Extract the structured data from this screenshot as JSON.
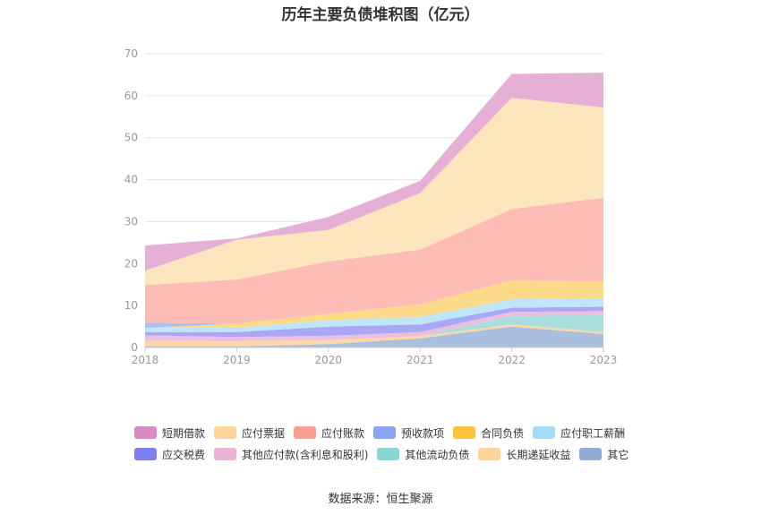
{
  "title": "历年主要负债堆积图（亿元）",
  "source": "数据来源：恒生聚源",
  "chart_data": {
    "type": "area",
    "stacked": true,
    "categories": [
      "2018",
      "2019",
      "2020",
      "2021",
      "2022",
      "2023"
    ],
    "ylim": [
      0,
      70
    ],
    "yticks": [
      0,
      10,
      20,
      30,
      40,
      50,
      60,
      70
    ],
    "grid": true,
    "legend_position": "bottom",
    "series": [
      {
        "name": "其它",
        "color": "#aabfe0",
        "values": [
          0.3,
          0.3,
          0.8,
          2.2,
          5.0,
          3.2
        ]
      },
      {
        "name": "长期递延收益",
        "color": "#fdd8a6",
        "values": [
          1.3,
          1.2,
          1.0,
          0.5,
          0.5,
          0.5
        ]
      },
      {
        "name": "其他流动负债",
        "color": "#a8dedb",
        "values": [
          0,
          0,
          0,
          0,
          2.0,
          4.0
        ]
      },
      {
        "name": "其他应付款(含利息和股利)",
        "color": "#edbfdf",
        "values": [
          1.3,
          1.0,
          1.0,
          1.0,
          1.0,
          1.0
        ]
      },
      {
        "name": "应交税费",
        "color": "#a8a8f7",
        "values": [
          0.8,
          1.2,
          2.2,
          1.8,
          1.0,
          1.0
        ]
      },
      {
        "name": "应付职工薪酬",
        "color": "#bfe5f8",
        "values": [
          1.0,
          1.0,
          1.5,
          1.8,
          2.0,
          2.0
        ]
      },
      {
        "name": "合同负债",
        "color": "#fdd98a",
        "values": [
          0,
          1.0,
          1.5,
          3.0,
          4.5,
          4.0
        ]
      },
      {
        "name": "预收款项",
        "color": "#aabff5",
        "values": [
          1.2,
          0,
          0,
          0,
          0,
          0
        ]
      },
      {
        "name": "应付账款",
        "color": "#fdbcb5",
        "values": [
          9.0,
          10.5,
          12.5,
          13.0,
          17.0,
          20.0
        ]
      },
      {
        "name": "应付票据",
        "color": "#fde6bd",
        "values": [
          3.4,
          9.5,
          7.5,
          13.5,
          26.5,
          21.5
        ]
      },
      {
        "name": "短期借款",
        "color": "#e5afd6",
        "values": [
          6.0,
          0.3,
          3.1,
          2.9,
          5.7,
          8.3
        ]
      }
    ]
  },
  "legend_rows": [
    [
      {
        "label": "短期借款",
        "color": "#da8ac4"
      },
      {
        "label": "应付票据",
        "color": "#fdd599"
      },
      {
        "label": "应付账款",
        "color": "#f9a093"
      },
      {
        "label": "预收款项",
        "color": "#8aa5f3"
      },
      {
        "label": "合同负债",
        "color": "#fcc43c"
      },
      {
        "label": "应付职工薪酬",
        "color": "#a3dcf7"
      }
    ],
    [
      {
        "label": "应交税费",
        "color": "#7e7ef3"
      },
      {
        "label": "其他应付款(含利息和股利)",
        "color": "#ebb4d6"
      },
      {
        "label": "其他流动负债",
        "color": "#85d6d4"
      },
      {
        "label": "长期递延收益",
        "color": "#fdd599"
      },
      {
        "label": "其它",
        "color": "#92acd8"
      }
    ]
  ]
}
